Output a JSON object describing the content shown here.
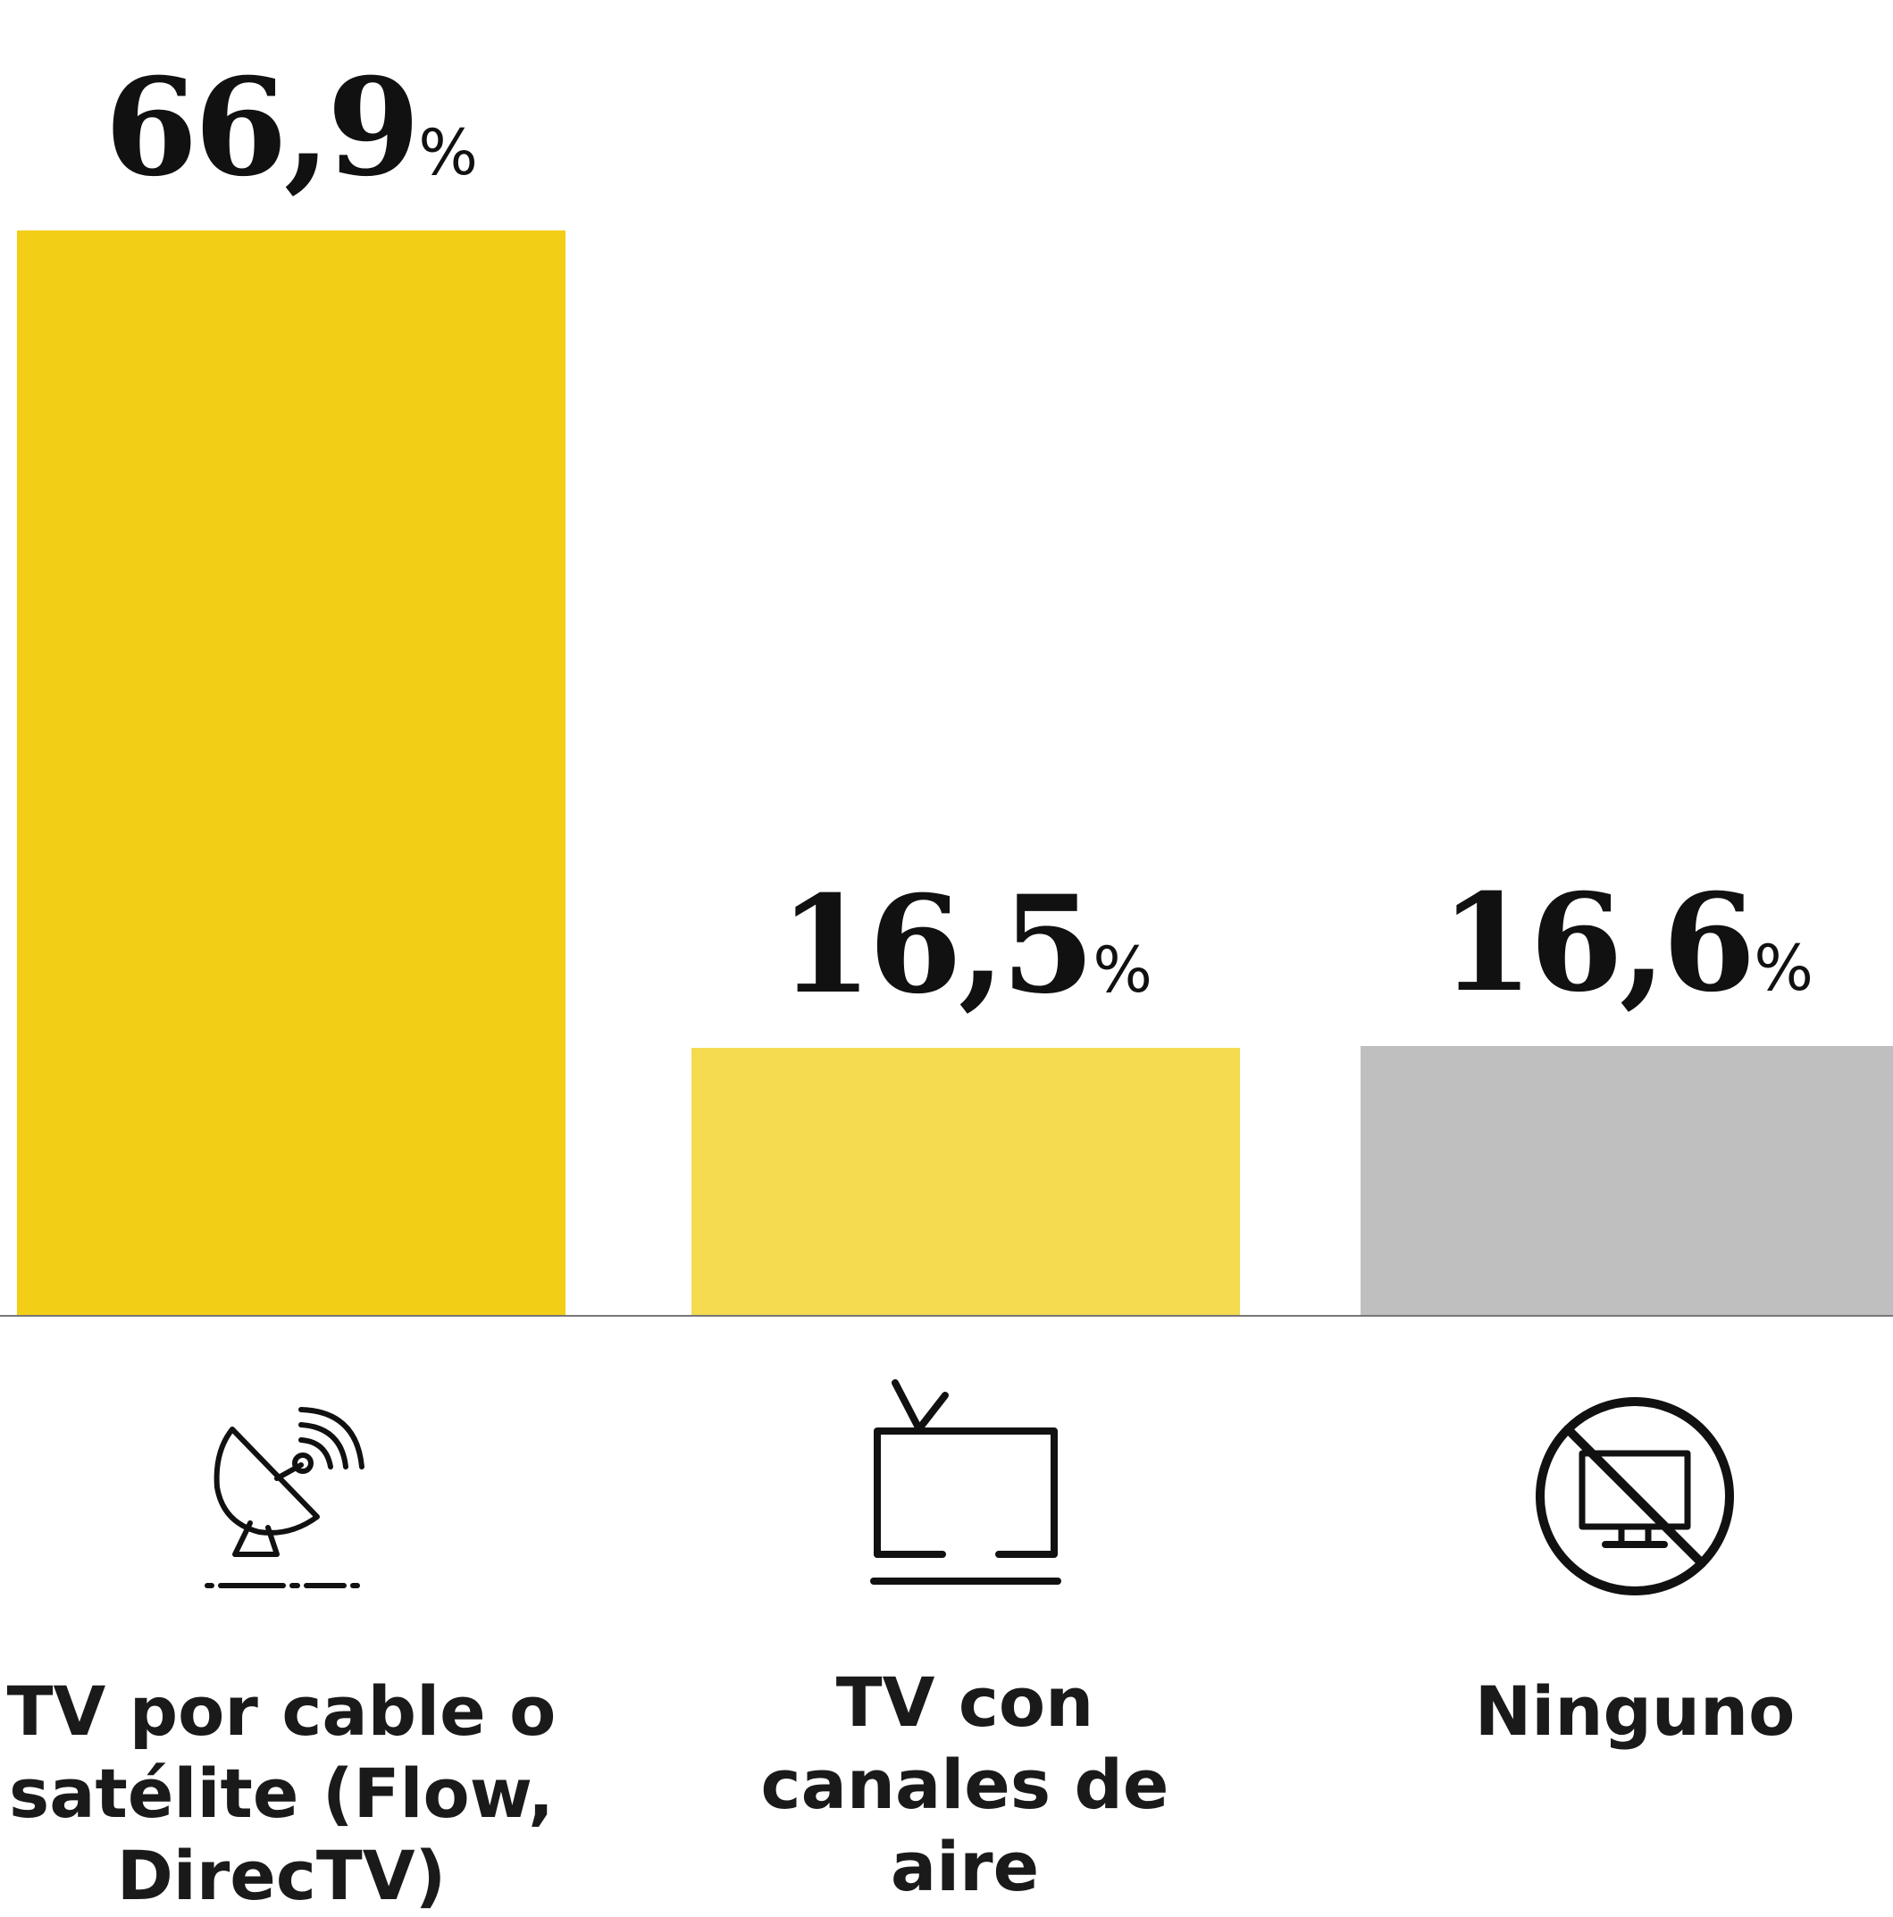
{
  "chart_data": {
    "type": "bar",
    "categories": [
      "TV por cable o satélite (Flow, DirecTV)",
      "TV con canales de aire",
      "Ninguno"
    ],
    "values": [
      66.9,
      16.5,
      16.6
    ],
    "value_labels": [
      "66,9",
      "16,5",
      "16,6"
    ],
    "unit": "%",
    "colors": [
      "#F2CE17",
      "#F4DB50",
      "#BFBFBF"
    ],
    "icons": [
      "satellite-dish-icon",
      "tv-antenna-icon",
      "no-tv-icon"
    ],
    "ylim": [
      0,
      66.9
    ],
    "grid": false,
    "legend": "none"
  }
}
